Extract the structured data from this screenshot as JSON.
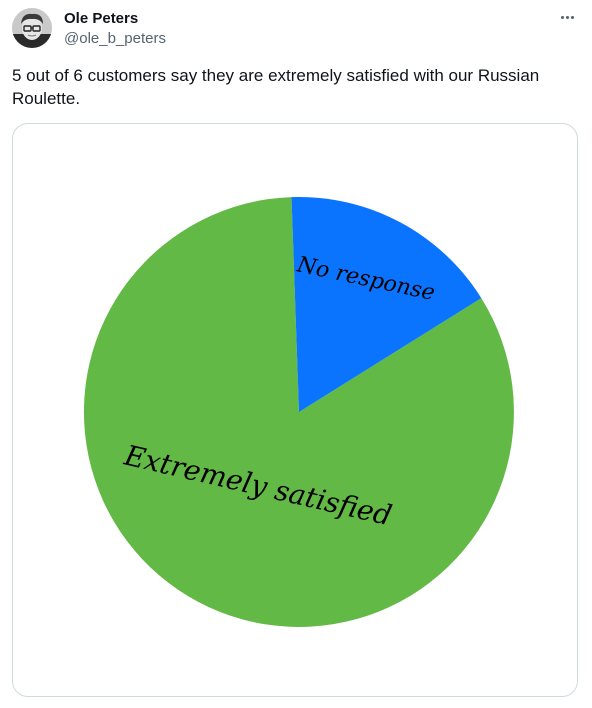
{
  "tweet": {
    "author": {
      "display_name": "Ole Peters",
      "handle": "@ole_b_peters",
      "avatar_icon": "profile-photo"
    },
    "more_icon": "more-horizontal-icon",
    "text": "5 out of 6 customers say they are extremely satisfied with our Russian Roulette."
  },
  "chart_data": {
    "type": "pie",
    "title": "",
    "slices": [
      {
        "label": "Extremely satisfied",
        "value": 5,
        "color": "#62b946"
      },
      {
        "label": "No response",
        "value": 1,
        "color": "#0a74ff"
      }
    ],
    "legend": "none"
  },
  "colors": {
    "text": "#0f1419",
    "secondary_text": "#536471",
    "border": "#cfd9de"
  }
}
